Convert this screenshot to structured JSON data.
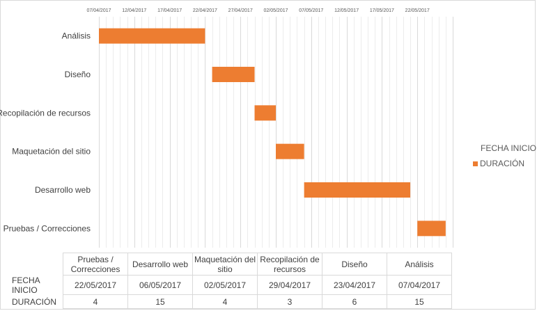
{
  "chart_data": {
    "type": "bar",
    "orientation": "horizontal-gantt",
    "x_axis": {
      "tick_labels": [
        "07/04/2017",
        "12/04/2017",
        "17/04/2017",
        "22/04/2017",
        "27/04/2017",
        "02/05/2017",
        "07/05/2017",
        "12/05/2017",
        "17/05/2017",
        "22/05/2017"
      ],
      "range": [
        "07/04/2017",
        "27/05/2017"
      ],
      "position": "top",
      "gridlines": true
    },
    "categories": [
      "Análisis",
      "Diseño",
      "Recopilación de recursos",
      "Maquetación del sitio",
      "Desarrollo web",
      "Pruebas / Correcciones"
    ],
    "series": [
      {
        "name": "FECHA INICIO",
        "values": [
          "07/04/2017",
          "23/04/2017",
          "29/04/2017",
          "02/05/2017",
          "06/05/2017",
          "22/05/2017"
        ],
        "color": "none"
      },
      {
        "name": "DURACIÓN",
        "values": [
          15,
          6,
          3,
          4,
          15,
          4
        ],
        "color": "#ed7d31"
      }
    ],
    "legend": {
      "placement": "right",
      "entries": [
        "FECHA INICIO",
        "DURACIÓN"
      ]
    },
    "data_table": {
      "columns": [
        "Pruebas / Correcciones",
        "Desarrollo web",
        "Maquetación del sitio",
        "Recopilación de recursos",
        "Diseño",
        "Análisis"
      ],
      "rows": [
        {
          "label": "FECHA INICIO",
          "values": [
            "22/05/2017",
            "06/05/2017",
            "02/05/2017",
            "29/04/2017",
            "23/04/2017",
            "07/04/2017"
          ]
        },
        {
          "label": "DURACIÓN",
          "values": [
            "4",
            "15",
            "4",
            "3",
            "6",
            "15"
          ]
        }
      ]
    }
  }
}
